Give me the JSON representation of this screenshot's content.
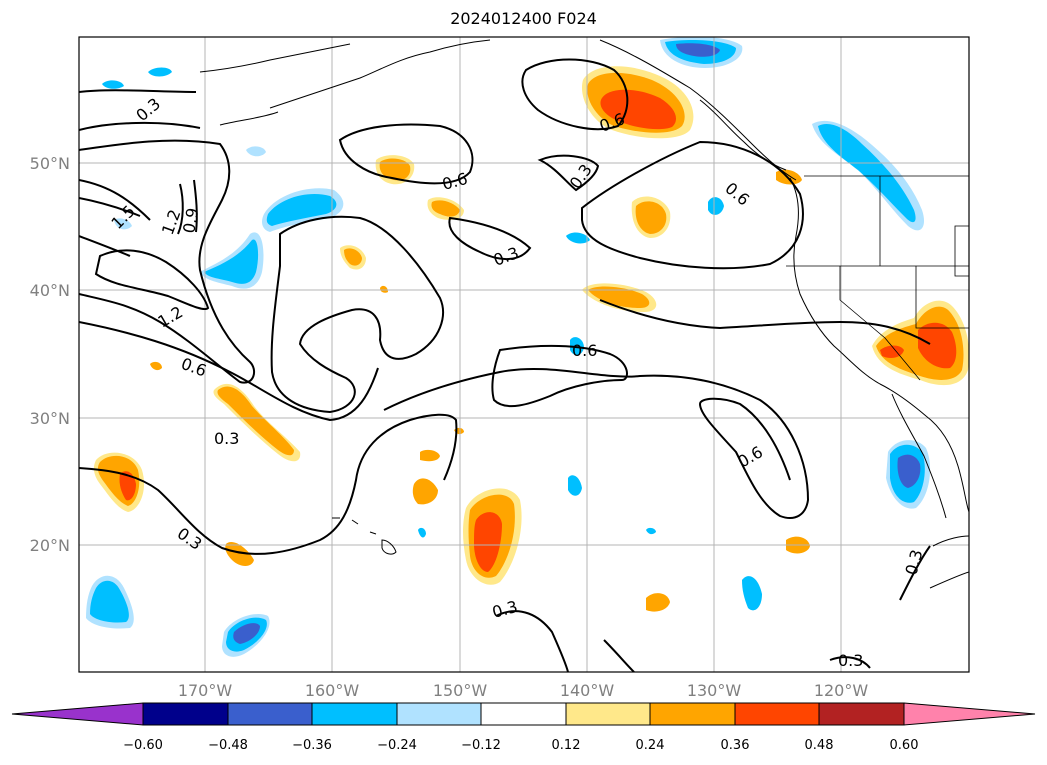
{
  "title": "2024012400 F024",
  "lat_labels": [
    "50°N",
    "40°N",
    "30°N",
    "20°N"
  ],
  "lon_labels": [
    "170°W",
    "160°W",
    "150°W",
    "140°W",
    "130°W",
    "120°W"
  ],
  "contour_labels": [
    "0.3",
    "1.5",
    "1.2",
    "0.9",
    "1.2",
    "0.6",
    "0.3",
    "0.3",
    "0.6",
    "0.3",
    "0.6",
    "0.3",
    "0.6",
    "0.6",
    "0.6",
    "0.3",
    "0.3",
    "0.3"
  ],
  "colorbar": {
    "ticks": [
      "−0.60",
      "−0.48",
      "−0.36",
      "−0.24",
      "−0.12",
      "0.12",
      "0.24",
      "0.36",
      "0.48",
      "0.60"
    ],
    "colors": [
      "#9932cc",
      "#00008b",
      "#3a5fcd",
      "#00bfff",
      "#b0e2ff",
      "#ffffff",
      "#ffe88a",
      "#ffa500",
      "#ff4500",
      "#b22222",
      "#ff82ab"
    ]
  },
  "shade_colors": {
    "pos_light": "#ffe88a",
    "pos_mid": "#ffa500",
    "pos_high": "#ff4500",
    "neg_light": "#b0e2ff",
    "neg_mid": "#00bfff",
    "neg_high": "#3a5fcd"
  }
}
